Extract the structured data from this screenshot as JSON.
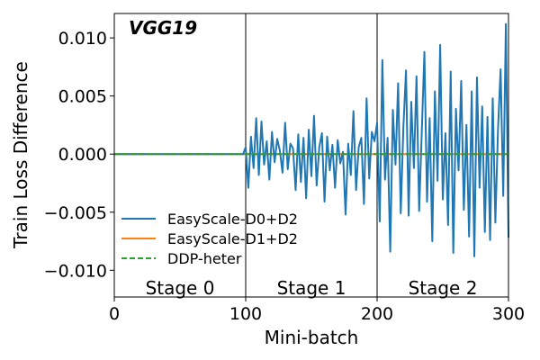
{
  "chart_data": {
    "type": "line",
    "title": "",
    "annotation": "VGG19",
    "xlabel": "Mini-batch",
    "ylabel": "Train Loss Difference",
    "xlim": [
      0,
      300
    ],
    "ylim": [
      -0.0123,
      0.0121
    ],
    "x_ticks": [
      0,
      100,
      200,
      300
    ],
    "x_tick_labels": [
      "0",
      "100",
      "200",
      "300"
    ],
    "y_ticks": [
      0.01,
      0.005,
      0.0,
      -0.005,
      -0.01
    ],
    "y_tick_labels": [
      "0.010",
      "0.005",
      "0.000",
      "−0.005",
      "−0.010"
    ],
    "stage_boundaries": [
      100,
      200
    ],
    "stages": [
      {
        "label": "Stage 0",
        "x_center": 50
      },
      {
        "label": "Stage 1",
        "x_center": 150
      },
      {
        "label": "Stage 2",
        "x_center": 250
      }
    ],
    "grid": false,
    "legend_position": "lower-left",
    "series": [
      {
        "name": "EasyScale-D0+D2",
        "color": "#1f77b4",
        "dash": "solid",
        "x_start": 0,
        "x_step": 2,
        "values": [
          0,
          0,
          0,
          0,
          0,
          0,
          0,
          0,
          0,
          0,
          0,
          0,
          0,
          0,
          0,
          0,
          0,
          0,
          0,
          0,
          0,
          0,
          0,
          0,
          0,
          0,
          0,
          0,
          0,
          0,
          0,
          0,
          0,
          0,
          0,
          0,
          0,
          0,
          0,
          0,
          0,
          0,
          0,
          0,
          0,
          0,
          0,
          0,
          0,
          0,
          0.0006,
          -0.0029,
          0.0015,
          -0.0012,
          0.0031,
          -0.0018,
          0.0028,
          -0.0009,
          0.0011,
          -0.0022,
          0.0019,
          -0.0007,
          0.0013,
          0.0003,
          -0.0016,
          0.0027,
          -0.0013,
          0.0009,
          0.0005,
          -0.0031,
          0.0017,
          -0.0024,
          0.0014,
          -0.0038,
          0.0021,
          -0.0019,
          0.0033,
          -0.0027,
          0.0006,
          0.0018,
          -0.0041,
          0.0015,
          -0.0014,
          0.0008,
          -0.0029,
          0.0012,
          -0.0008,
          0.0002,
          -0.0052,
          0.0009,
          -0.0018,
          0.0037,
          -0.0031,
          0.0006,
          0.0014,
          -0.0043,
          0.0048,
          -0.0021,
          0.0019,
          0.0011,
          0.0027,
          -0.0058,
          0.0081,
          -0.0022,
          0.0014,
          -0.0084,
          0.0038,
          -0.0009,
          0.0061,
          -0.0051,
          0.0023,
          0.0072,
          -0.0053,
          0.0045,
          -0.0012,
          0.0067,
          -0.0049,
          0.0019,
          0.0088,
          -0.0041,
          0.0031,
          -0.0075,
          0.0054,
          -0.0023,
          0.0094,
          -0.0039,
          0.0018,
          -0.0061,
          0.0071,
          -0.0085,
          0.0039,
          -0.0014,
          0.0063,
          -0.0048,
          0.0025,
          -0.0071,
          0.0054,
          -0.0088,
          0.0066,
          -0.0029,
          0.0041,
          -0.0067,
          0.0032,
          -0.0074,
          0.0048,
          -0.0059,
          0.0021,
          0.0073,
          -0.0036,
          0.0112,
          -0.0072
        ]
      },
      {
        "name": "EasyScale-D1+D2",
        "color": "#ff7f0e",
        "dash": "solid",
        "x": [
          0,
          300
        ],
        "values": [
          0,
          0
        ]
      },
      {
        "name": "DDP-heter",
        "color": "#2ca02c",
        "dash": "dashed",
        "x": [
          0,
          300
        ],
        "values": [
          0,
          0
        ]
      }
    ]
  }
}
